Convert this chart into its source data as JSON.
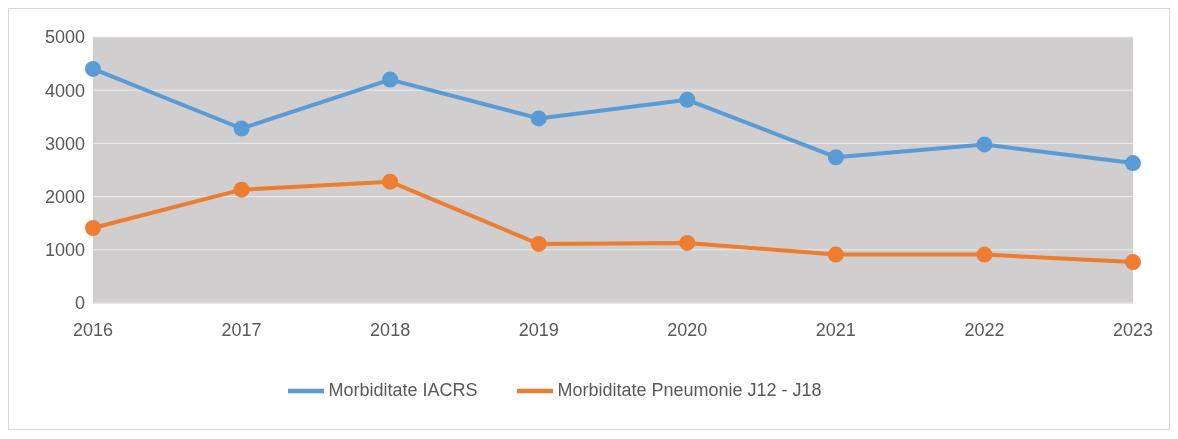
{
  "chart_data": {
    "type": "line",
    "categories": [
      "2016",
      "2017",
      "2018",
      "2019",
      "2020",
      "2021",
      "2022",
      "2023"
    ],
    "series": [
      {
        "name": "Morbiditate IACRS",
        "color": "#5b9bd5",
        "values": [
          4400,
          3280,
          4200,
          3470,
          3820,
          2740,
          2980,
          2630
        ]
      },
      {
        "name": "Morbiditate Pneumonie J12 - J18",
        "color": "#ed7d31",
        "values": [
          1410,
          2130,
          2280,
          1110,
          1130,
          910,
          910,
          770
        ]
      }
    ],
    "ylim": [
      0,
      5000
    ],
    "yticks": [
      0,
      1000,
      2000,
      3000,
      4000,
      5000
    ],
    "grid": "y",
    "legend": "bottom",
    "marker": "circle",
    "line_style": "solid"
  }
}
